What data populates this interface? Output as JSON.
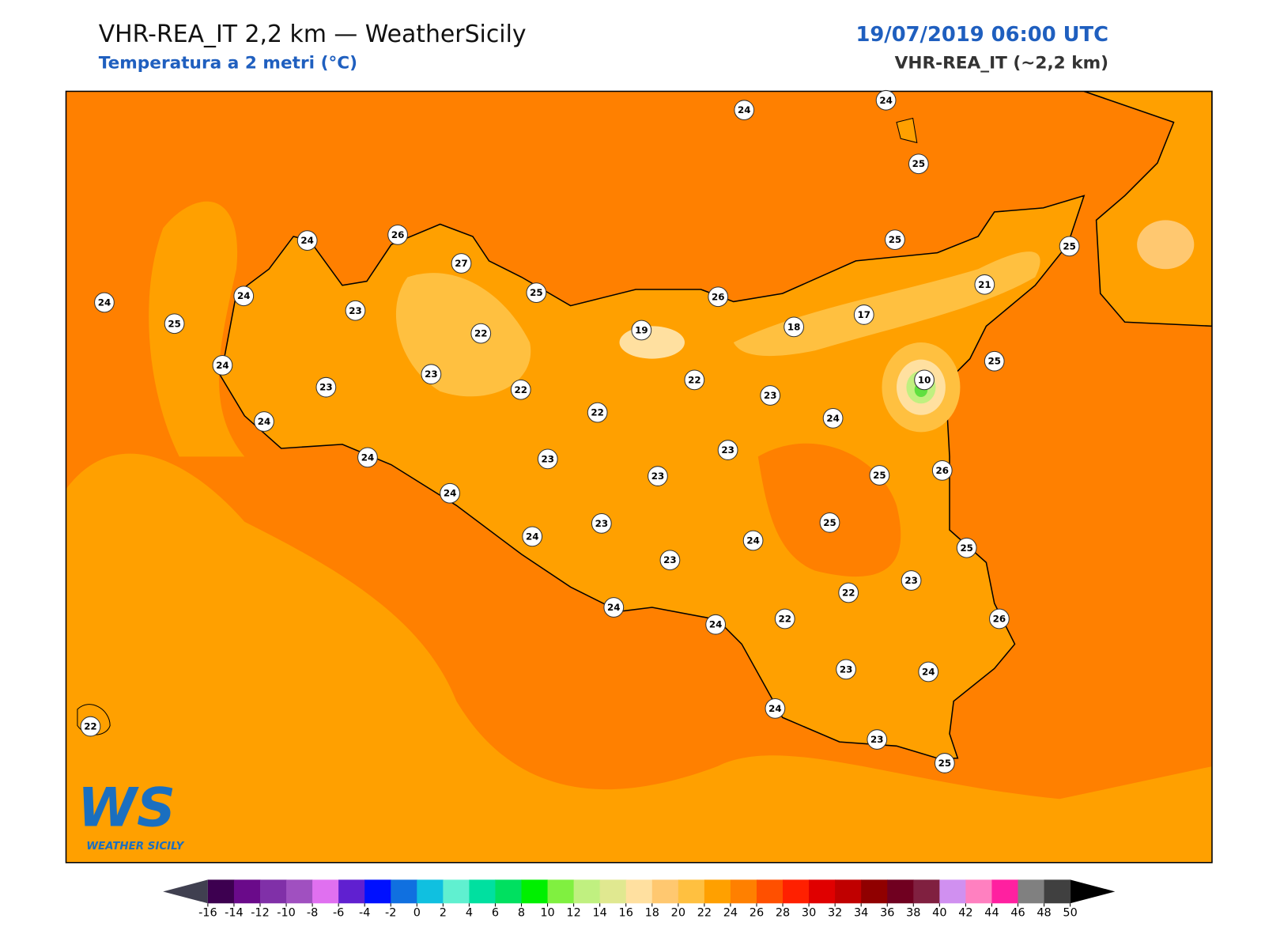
{
  "header": {
    "title": "VHR-REA_IT 2,2 km — WeatherSicily",
    "subtitle": "Temperatura a 2 metri (°C)",
    "date": "19/07/2019 06:00 UTC",
    "model": "VHR-REA_IT (~2,2 km)"
  },
  "stations": [
    24,
    24,
    25,
    24,
    26,
    27,
    25,
    25,
    25,
    26,
    24,
    24,
    23,
    25,
    21,
    17,
    18,
    19,
    22,
    24,
    25,
    10,
    23,
    22,
    23,
    22,
    23,
    22,
    24,
    24,
    23,
    24,
    23,
    23,
    25,
    26,
    24,
    25,
    23,
    24,
    25,
    24,
    23,
    23,
    22,
    24,
    22,
    24,
    26,
    23,
    24,
    24,
    23,
    25,
    22
  ],
  "colorbar": {
    "ticks": [
      -16,
      -14,
      -12,
      -10,
      -8,
      -6,
      -4,
      -2,
      0,
      2,
      4,
      6,
      8,
      10,
      12,
      14,
      16,
      18,
      20,
      22,
      24,
      26,
      28,
      30,
      32,
      34,
      36,
      38,
      40,
      42,
      44,
      46,
      48,
      50
    ],
    "colors": [
      "#3d0050",
      "#6a0a8a",
      "#8030a8",
      "#a050c0",
      "#e070f0",
      "#6020d0",
      "#0010ff",
      "#1070e0",
      "#10c0e0",
      "#60f0d0",
      "#00e0a0",
      "#00e060",
      "#00f000",
      "#80f040",
      "#c0f080",
      "#e0e890",
      "#ffe0a0",
      "#ffc870",
      "#ffc040",
      "#ffa000",
      "#ff8000",
      "#ff5000",
      "#ff2000",
      "#e00000",
      "#c00000",
      "#900000",
      "#700020",
      "#802040",
      "#d090f0",
      "#ff80c0",
      "#ff20a0",
      "#808080",
      "#404040"
    ],
    "under_color": "#404050",
    "over_color": "#000000"
  },
  "logo": {
    "mark": "WS",
    "name": "WEATHER SICILY"
  }
}
